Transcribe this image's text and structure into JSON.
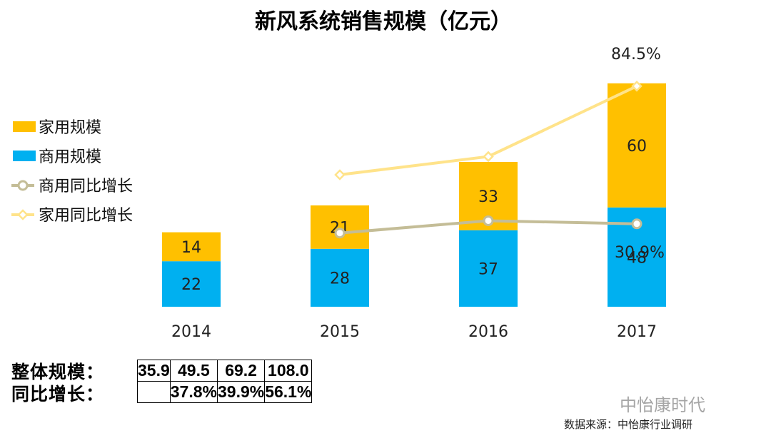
{
  "chart_data": {
    "type": "bar",
    "stacked": true,
    "title": "新风系统销售规模（亿元）",
    "categories": [
      "2014",
      "2015",
      "2016",
      "2017"
    ],
    "series": [
      {
        "name": "商用规模",
        "values": [
          22,
          28,
          37,
          48
        ],
        "color": "#00B0F0"
      },
      {
        "name": "家用规模",
        "values": [
          14,
          21,
          33,
          60
        ],
        "color": "#FFC000"
      }
    ],
    "line_series": [
      {
        "name": "商用同比增长",
        "values": [
          null,
          27.3,
          32.1,
          30.9
        ],
        "color": "#C4BD97",
        "marker": "circle"
      },
      {
        "name": "家用同比增长",
        "values": [
          null,
          50.0,
          57.1,
          84.5
        ],
        "color": "#FFE38A",
        "marker": "diamond"
      }
    ],
    "annotations": [
      {
        "text": "84.5%",
        "category": "2017",
        "series": "家用同比增长"
      },
      {
        "text": "30.9%",
        "category": "2017",
        "series": "商用同比增长"
      }
    ],
    "legend": {
      "placement": "left",
      "items": [
        {
          "name": "家用规模",
          "symbol": "square",
          "color": "#FFC000"
        },
        {
          "name": "商用规模",
          "symbol": "square",
          "color": "#00B0F0"
        },
        {
          "name": "商用同比增长",
          "symbol": "line-circle",
          "color": "#C4BD97"
        },
        {
          "name": "家用同比增长",
          "symbol": "line-diamond",
          "color": "#FFE38A"
        }
      ]
    },
    "ylim": [
      0,
      115
    ],
    "grid": false
  },
  "summary": {
    "rows": [
      {
        "label": "整体规模：",
        "values": [
          "35.9",
          "49.5",
          "69.2",
          "108.0"
        ]
      },
      {
        "label": "同比增长：",
        "values": [
          "",
          "37.8%",
          "39.9%",
          "56.1%"
        ]
      }
    ]
  },
  "source": "数据来源：中怡康行业调研",
  "watermark": "中怡康时代"
}
